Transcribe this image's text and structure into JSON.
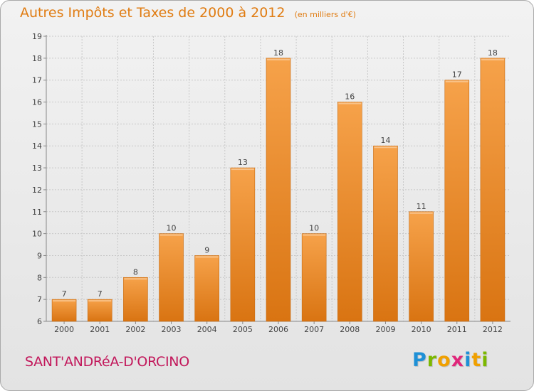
{
  "header": {
    "title": "Autres Impôts et Taxes de 2000 à 2012",
    "unit": "(en milliers d'€)"
  },
  "footer": {
    "commune": "SANT'ANDRéA-D'ORCINO",
    "logo_letters": [
      "P",
      "r",
      "o",
      "x",
      "i",
      "t",
      "i"
    ],
    "logo_colors": [
      "#1e90d6",
      "#7cb800",
      "#f0a000",
      "#e0267a",
      "#1e90d6",
      "#f0a000",
      "#7cb800"
    ]
  },
  "colors": {
    "accent": "#e07c12",
    "bar_top": "#f6a24a",
    "bar_bottom": "#d97412",
    "commune": "#c2185b"
  },
  "chart_data": {
    "type": "bar",
    "title": "Autres Impôts et Taxes de 2000 à 2012",
    "categories": [
      "2000",
      "2001",
      "2002",
      "2003",
      "2004",
      "2005",
      "2006",
      "2007",
      "2008",
      "2009",
      "2010",
      "2011",
      "2012"
    ],
    "values": [
      7,
      7,
      8,
      10,
      9,
      13,
      18,
      10,
      16,
      14,
      11,
      17,
      18
    ],
    "ylim": [
      6,
      19
    ],
    "yticks": [
      6,
      7,
      8,
      9,
      10,
      11,
      12,
      13,
      14,
      15,
      16,
      17,
      18,
      19
    ],
    "grid": true,
    "xlabel": "",
    "ylabel": ""
  }
}
